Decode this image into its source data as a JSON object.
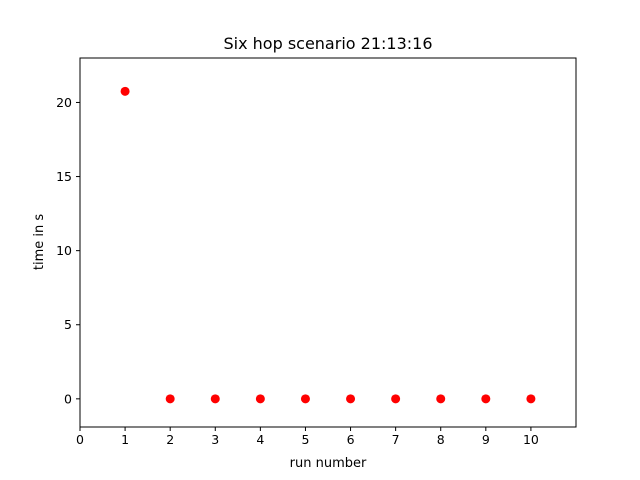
{
  "chart_data": {
    "type": "scatter",
    "title": "Six hop scenario 21:13:16",
    "xlabel": "run number",
    "ylabel": "time in s",
    "xlim": [
      0,
      11
    ],
    "ylim": [
      -1.9,
      23
    ],
    "xticks": [
      0,
      1,
      2,
      3,
      4,
      5,
      6,
      7,
      8,
      9,
      10
    ],
    "yticks": [
      0,
      5,
      10,
      15,
      20
    ],
    "grid": false,
    "series": [
      {
        "color": "#ff0000",
        "marker": "circle",
        "x": [
          1,
          2,
          3,
          4,
          5,
          6,
          7,
          8,
          9,
          10
        ],
        "y": [
          20.75,
          0.0,
          0.0,
          0.0,
          0.0,
          0.0,
          0.0,
          0.0,
          0.0,
          0.0
        ]
      }
    ]
  }
}
